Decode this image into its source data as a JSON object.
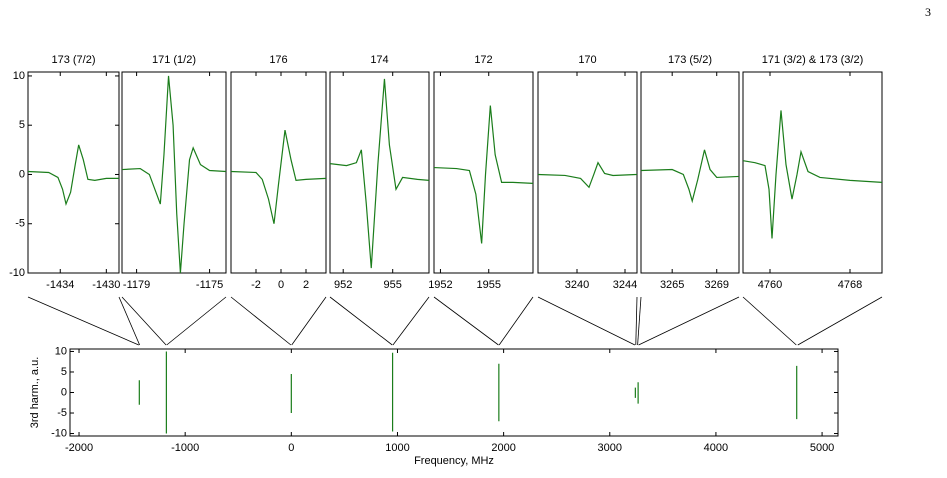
{
  "page_number": "3",
  "chart_data": [
    {
      "type": "line",
      "title": "173 (7/2)",
      "color": "#1b7d1b",
      "x": [
        -1436.8,
        -1435,
        -1434.2,
        -1433.8,
        -1433.5,
        -1433.1,
        -1432.7,
        -1432.4,
        -1432,
        -1431.6,
        -1431,
        -1430,
        -1428.9
      ],
      "values": [
        0.3,
        0.2,
        -0.3,
        -1.5,
        -3,
        -1.8,
        1,
        3,
        1.5,
        -0.5,
        -0.6,
        -0.4,
        -0.4
      ],
      "xlim": [
        -1436.8,
        -1428.9
      ],
      "xticks": [
        -1434,
        -1430
      ],
      "ylim": [
        -10,
        10.4
      ],
      "yticks": [
        -10,
        -5,
        0,
        5,
        10
      ]
    },
    {
      "type": "line",
      "title": "171 (1/2)",
      "color": "#1b7d1b",
      "x": [
        -1179.8,
        -1178.8,
        -1178.3,
        -1177.9,
        -1177.7,
        -1177.5,
        -1177.25,
        -1177,
        -1176.8,
        -1176.6,
        -1176.4,
        -1176.1,
        -1175.9,
        -1175.5,
        -1175,
        -1174.1
      ],
      "values": [
        0.5,
        0.6,
        0,
        -2,
        -3,
        2,
        10,
        5,
        -4,
        -10,
        -5,
        1.5,
        2.7,
        1,
        0.4,
        0.3
      ],
      "xlim": [
        -1179.8,
        -1174.1
      ],
      "xticks": [
        -1179,
        -1175
      ],
      "ylim": [
        -10,
        10.4
      ]
    },
    {
      "type": "line",
      "title": "176",
      "color": "#1b7d1b",
      "x": [
        -4,
        -2,
        -1.5,
        -1,
        -0.56,
        -0.2,
        0.32,
        0.8,
        1.2,
        2,
        3.6
      ],
      "values": [
        0.3,
        0.2,
        -0.5,
        -2.5,
        -5,
        -1,
        4.5,
        1.5,
        -0.6,
        -0.5,
        -0.4
      ],
      "xlim": [
        -4,
        3.6
      ],
      "xticks": [
        -2,
        0,
        2
      ],
      "ylim": [
        -10,
        10.4
      ]
    },
    {
      "type": "line",
      "title": "174",
      "color": "#1b7d1b",
      "x": [
        951.2,
        952.2,
        952.8,
        953.1,
        953.4,
        953.7,
        954.1,
        954.5,
        954.8,
        955.2,
        955.6,
        956.5,
        957.2
      ],
      "values": [
        1.1,
        0.9,
        1.2,
        2.5,
        -3,
        -9.5,
        1,
        9.7,
        3,
        -1.5,
        -0.3,
        -0.5,
        -0.6
      ],
      "xlim": [
        951.2,
        957.2
      ],
      "xticks": [
        952,
        955
      ],
      "ylim": [
        -10,
        10.4
      ]
    },
    {
      "type": "line",
      "title": "172",
      "color": "#1b7d1b",
      "x": [
        1951.6,
        1953,
        1953.8,
        1954.2,
        1954.56,
        1954.8,
        1955.1,
        1955.4,
        1955.8,
        1956.5,
        1957.75
      ],
      "values": [
        0.7,
        0.6,
        0.4,
        -2,
        -7,
        0,
        7,
        2,
        -0.8,
        -0.8,
        -0.9
      ],
      "xlim": [
        1951.6,
        1957.75
      ],
      "xticks": [
        1952,
        1955
      ],
      "ylim": [
        -10,
        10.4
      ]
    },
    {
      "type": "line",
      "title": "170",
      "color": "#1b7d1b",
      "x": [
        3236.75,
        3239,
        3240.3,
        3241,
        3241.4,
        3241.75,
        3242.3,
        3243,
        3245
      ],
      "values": [
        0,
        -0.1,
        -0.4,
        -1.3,
        0,
        1.2,
        0.1,
        -0.1,
        0
      ],
      "xlim": [
        3236.75,
        3245
      ],
      "xticks": [
        3240,
        3244
      ],
      "ylim": [
        -10,
        10.4
      ]
    },
    {
      "type": "line",
      "title": "173 (5/2)",
      "color": "#1b7d1b",
      "x": [
        3262.2,
        3265,
        3266,
        3266.5,
        3266.8,
        3267.3,
        3267.9,
        3268.4,
        3269,
        3271
      ],
      "values": [
        0.4,
        0.5,
        0,
        -1.5,
        -2.7,
        -0.5,
        2.5,
        0.5,
        -0.3,
        -0.2
      ],
      "xlim": [
        3262.2,
        3271
      ],
      "xticks": [
        3265,
        3269
      ],
      "ylim": [
        -10,
        10.4
      ]
    },
    {
      "type": "line",
      "title": "171 (3/2) & 173 (3/2)",
      "color": "#1b7d1b",
      "x": [
        4757.3,
        4758.5,
        4759.5,
        4759.9,
        4760.2,
        4760.6,
        4761.1,
        4761.6,
        4762.2,
        4762.7,
        4763.1,
        4763.8,
        4765,
        4768,
        4771.2
      ],
      "values": [
        1.4,
        1.2,
        0.9,
        -1.5,
        -6.5,
        0,
        6.5,
        1,
        -2.5,
        0,
        2.3,
        0.3,
        -0.3,
        -0.6,
        -0.8
      ],
      "xlim": [
        4757.3,
        4771.2
      ],
      "xticks": [
        4760,
        4768
      ],
      "ylim": [
        -10,
        10.4
      ]
    },
    {
      "type": "line",
      "x_label": "Frequency, MHz",
      "y_label": "3rd harm., a.u.",
      "color": "#1b7d1b",
      "x": [
        -1432,
        -1432,
        -1432,
        -1177,
        -1177,
        -1177,
        0,
        0,
        0,
        954,
        954,
        954,
        1955,
        1955,
        1955,
        3241,
        3241,
        3241,
        3267,
        3267,
        3267,
        4761,
        4761
      ],
      "values": [
        -3,
        3,
        null,
        -10,
        10,
        null,
        -5,
        4.5,
        null,
        -9.5,
        9.7,
        null,
        -7,
        7,
        null,
        -1.3,
        1.2,
        null,
        -2.7,
        2.5,
        null,
        -6.5,
        6.5
      ],
      "xlim": [
        -2085,
        5150
      ],
      "xticks": [
        -2000,
        -1000,
        0,
        1000,
        2000,
        3000,
        4000,
        5000
      ],
      "ylim": [
        -10.6,
        10.6
      ],
      "yticks": [
        -10,
        -5,
        0,
        5,
        10
      ]
    }
  ]
}
